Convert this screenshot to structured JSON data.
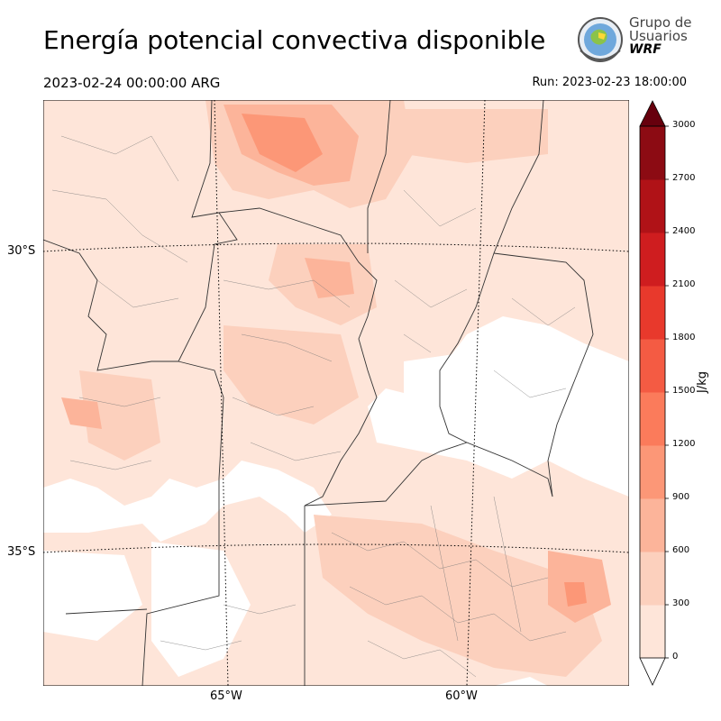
{
  "header": {
    "title": "Energía potencial convectiva disponible",
    "valid_time": "2023-02-24 00:00:00 ARG",
    "run_time": "Run: 2023-02-23 18:00:00"
  },
  "logo": {
    "line1": "Grupo de",
    "line2": "Usuarios",
    "line3": "WRF"
  },
  "map": {
    "lat_labels": [
      "30°S",
      "35°S"
    ],
    "lon_labels": [
      "65°W",
      "60°W"
    ]
  },
  "colorbar": {
    "unit": "J/kg",
    "ticks": [
      "0",
      "300",
      "600",
      "900",
      "1200",
      "1500",
      "1800",
      "2100",
      "2400",
      "2700",
      "3000"
    ],
    "colors": [
      "#fee5d9",
      "#fcd0bd",
      "#fcb49a",
      "#fc9777",
      "#fb7b5b",
      "#f45b43",
      "#e8392c",
      "#cf1d1f",
      "#b01217",
      "#8c0b13",
      "#67000d"
    ]
  }
}
